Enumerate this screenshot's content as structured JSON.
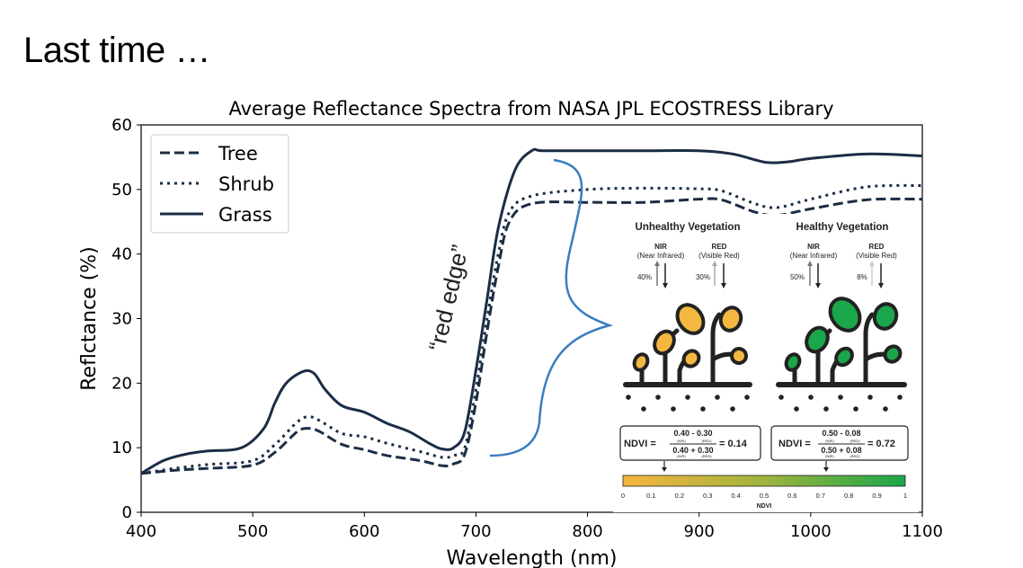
{
  "slide": {
    "title": "Last time …"
  },
  "chart_data": {
    "type": "line",
    "title": "Average Reflectance Spectra from NASA JPL ECOSTRESS Library",
    "xlabel": "Wavelength (nm)",
    "ylabel": "Reflctance (%)",
    "xlim": [
      400,
      1100
    ],
    "ylim": [
      0,
      60
    ],
    "xticks": [
      400,
      500,
      600,
      700,
      800,
      900,
      1000,
      1100
    ],
    "yticks": [
      0,
      10,
      20,
      30,
      40,
      50,
      60
    ],
    "grid": false,
    "legend_position": "top-left",
    "series": [
      {
        "name": "Tree",
        "style": "dashed",
        "color": "#1b2d45",
        "x": [
          400,
          430,
          460,
          500,
          520,
          540,
          550,
          560,
          580,
          600,
          620,
          650,
          670,
          680,
          690,
          700,
          710,
          720,
          730,
          750,
          800,
          850,
          900,
          920,
          950,
          970,
          1000,
          1050,
          1100
        ],
        "y": [
          6,
          6.5,
          6.8,
          7.3,
          9.3,
          12.5,
          13,
          12.5,
          10.5,
          9.7,
          8.8,
          8,
          7.2,
          7.5,
          9,
          17,
          28,
          38,
          45,
          47.8,
          48,
          48,
          48.5,
          48.4,
          46.5,
          46,
          47,
          48.4,
          48.5
        ]
      },
      {
        "name": "Shrub",
        "style": "dotted",
        "color": "#1b2d45",
        "x": [
          400,
          430,
          460,
          500,
          520,
          540,
          550,
          560,
          580,
          600,
          620,
          650,
          670,
          680,
          690,
          700,
          710,
          720,
          730,
          750,
          800,
          850,
          900,
          920,
          950,
          970,
          1000,
          1050,
          1100
        ],
        "y": [
          6,
          6.8,
          7.4,
          8,
          10.5,
          14,
          14.8,
          14.2,
          12.2,
          11.7,
          10.7,
          9.4,
          8.5,
          8.8,
          10,
          19,
          30,
          40,
          46.5,
          49,
          50,
          50.2,
          50.1,
          49.8,
          47.8,
          47.2,
          48.5,
          50.4,
          50.6
        ]
      },
      {
        "name": "Grass",
        "style": "solid",
        "color": "#1b2d45",
        "x": [
          400,
          420,
          440,
          460,
          490,
          510,
          520,
          530,
          545,
          555,
          565,
          580,
          600,
          620,
          640,
          660,
          670,
          680,
          690,
          700,
          710,
          720,
          735,
          750,
          760,
          800,
          850,
          900,
          930,
          960,
          980,
          1000,
          1050,
          1100
        ],
        "y": [
          6,
          8,
          9,
          9.5,
          10,
          13,
          17,
          20,
          21.8,
          21.5,
          19,
          16.5,
          15.5,
          13.8,
          12.5,
          10.5,
          9.8,
          10,
          12.5,
          22,
          33,
          44,
          53,
          56,
          56,
          56,
          56,
          56,
          55.5,
          54.2,
          54.3,
          54.8,
          55.5,
          55.2
        ]
      }
    ],
    "annotations": [
      {
        "text": "“red edge”",
        "color": "#3a7dbf"
      }
    ]
  },
  "infographic": {
    "unhealthy": {
      "title": "Unhealthy Vegetation",
      "nir_label": "NIR",
      "nir_sub": "(Near Infrared)",
      "red_label": "RED",
      "red_sub": "(Visible Red)",
      "nir_pct": "40%",
      "red_pct": "30%",
      "leaf_color": "#f4b740",
      "ndvi_label": "NDVI =",
      "num": "0.40  -  0.30",
      "den": "0.40 + 0.30",
      "sub_nir": "(NIR)",
      "sub_red": "(RED)",
      "result": "= 0.14"
    },
    "healthy": {
      "title": "Healthy Vegetation",
      "nir_label": "NIR",
      "nir_sub": "(Near Infrared)",
      "red_label": "RED",
      "red_sub": "(Visible Red)",
      "nir_pct": "50%",
      "red_pct": "8%",
      "leaf_color": "#1aa64a",
      "ndvi_label": "NDVI =",
      "num": "0.50  -  0.08",
      "den": "0.50 + 0.08",
      "sub_nir": "(NIR)",
      "sub_red": "(RED)",
      "result": "= 0.72"
    },
    "scale": {
      "ticks": [
        "0",
        "0.1",
        "0.2",
        "0.3",
        "0.4",
        "0.5",
        "0.6",
        "0.7",
        "0.8",
        "0.9",
        "1"
      ],
      "label": "NDVI",
      "color_low": "#f7b53e",
      "color_high": "#1aa64a"
    }
  }
}
